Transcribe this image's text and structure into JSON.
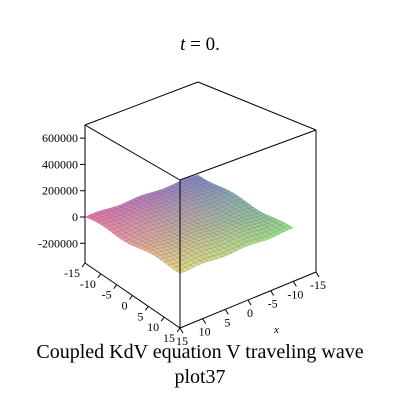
{
  "chart_data": {
    "type": "surface3d",
    "title_var": "t",
    "title_rest": " = 0.",
    "caption_line1": "Coupled KdV equation V traveling wave",
    "caption_line2": "plot37",
    "xlabel": "x",
    "zlim": [
      -350000,
      700000
    ],
    "z_ticks": [
      {
        "value": 600000,
        "label": "600000"
      },
      {
        "value": 400000,
        "label": "400000"
      },
      {
        "value": 200000,
        "label": "200000"
      },
      {
        "value": 0,
        "label": "0"
      },
      {
        "value": -200000,
        "label": "-200000"
      }
    ],
    "x_ticks": [
      "-15",
      "-10",
      "-5",
      "0",
      "5",
      "10",
      "15"
    ],
    "y_ticks": [
      "-15",
      "-10",
      "-5",
      "0",
      "5",
      "10",
      "15"
    ],
    "surface": {
      "x_range": [
        -15,
        15
      ],
      "y_range": [
        -15,
        15
      ],
      "z_amplitude": 12000
    }
  }
}
